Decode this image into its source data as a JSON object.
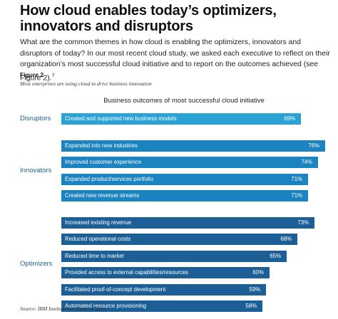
{
  "title": "How cloud enables today’s optimizers, innovators and disruptors",
  "intro": "What are the common themes in how cloud is enabling the optimizers, innovators and disruptors of today? In our most recent cloud study, we asked each executive to reflect on their organization’s most successful cloud initiative and to report on the outcomes achieved (see Figure 2).",
  "intro_ref": "7",
  "figure_label": "Figure 2",
  "figure_subtitle": "Most enterprises are using cloud to drive business innovation",
  "source": "Source: IBM Institute for Business Value",
  "colors": {
    "disruptors": "#2aa2d6",
    "innovators": "#1c83c1",
    "optimizers": "#1c5f96",
    "group_label": "#1a5e8a"
  },
  "chart_data": {
    "type": "bar",
    "orientation": "horizontal",
    "title": "Business outcomes of most successful cloud initiative",
    "unit": "%",
    "xlim": [
      0,
      80
    ],
    "groups": [
      {
        "name": "Disruptors",
        "color_key": "disruptors",
        "items": [
          {
            "label": "Created and supported new business models",
            "value": 69,
            "display": "69%"
          }
        ]
      },
      {
        "name": "Innovators",
        "color_key": "innovators",
        "items": [
          {
            "label": "Expanded into new industries",
            "value": 76,
            "display": "76%"
          },
          {
            "label": "Improved customer experience",
            "value": 74,
            "display": "74%"
          },
          {
            "label": "Expanded product/services portfolio",
            "value": 71,
            "display": "71%"
          },
          {
            "label": "Created new revenue streams",
            "value": 71,
            "display": "71%"
          }
        ]
      },
      {
        "name": "Optimizers",
        "color_key": "optimizers",
        "items": [
          {
            "label": "Increased existing revenue",
            "value": 73,
            "display": "73%"
          },
          {
            "label": "Reduced operational costs",
            "value": 68,
            "display": "68%"
          },
          {
            "label": "Reduced time to market",
            "value": 65,
            "display": "65%"
          },
          {
            "label": "Provided access to external capabilities/resources",
            "value": 60,
            "display": "60%"
          },
          {
            "label": "Facilitated proof-of-concept development",
            "value": 59,
            "display": "59%"
          },
          {
            "label": "Automated resource provisioning",
            "value": 58,
            "display": "58%"
          }
        ]
      }
    ]
  }
}
